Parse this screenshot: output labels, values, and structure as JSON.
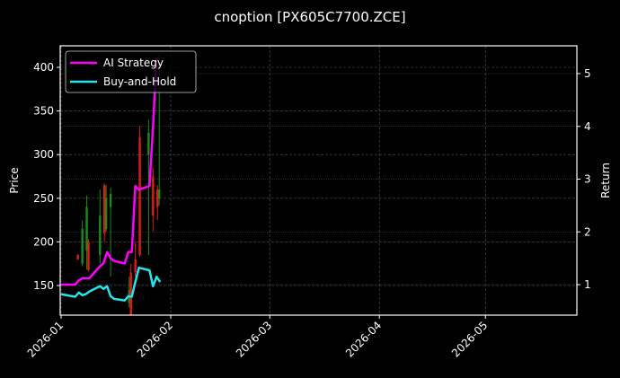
{
  "chart_data": {
    "type": "line",
    "title": "cnoption [PX605C7700.ZCE]",
    "xlabel": "",
    "ylabel_left": "Price",
    "ylabel_right": "Return",
    "background": "#000000",
    "grid": true,
    "legend_position": "upper left",
    "x_ticks": [
      "2026-01",
      "2026-02",
      "2026-03",
      "2026-04",
      "2026-05"
    ],
    "y_left_ticks": [
      150,
      200,
      250,
      300,
      350,
      400
    ],
    "y_right_ticks": [
      1,
      2,
      3,
      4,
      5
    ],
    "y_left_range": [
      115,
      425
    ],
    "y_right_range": [
      0.4,
      5.5
    ],
    "legend": [
      {
        "label": "AI Strategy",
        "color": "#ff00ff"
      },
      {
        "label": "Buy-and-Hold",
        "color": "#22e5ee"
      }
    ],
    "series": [
      {
        "name": "AI Strategy",
        "axis": "right",
        "color": "#ff00ff",
        "x": [
          "2026-01-01",
          "2026-01-05",
          "2026-01-06",
          "2026-01-07",
          "2026-01-08",
          "2026-01-09",
          "2026-01-12",
          "2026-01-13",
          "2026-01-14",
          "2026-01-15",
          "2026-01-16",
          "2026-01-19",
          "2026-01-20",
          "2026-01-21",
          "2026-01-22",
          "2026-01-23",
          "2026-01-26",
          "2026-01-27",
          "2026-01-28"
        ],
        "values": [
          1.0,
          1.0,
          1.08,
          1.12,
          1.12,
          1.12,
          1.35,
          1.4,
          1.62,
          1.5,
          1.45,
          1.4,
          1.62,
          1.62,
          2.87,
          2.8,
          2.87,
          4.0,
          5.3
        ]
      },
      {
        "name": "Buy-and-Hold",
        "axis": "right",
        "color": "#22e5ee",
        "x": [
          "2026-01-01",
          "2026-01-05",
          "2026-01-06",
          "2026-01-07",
          "2026-01-08",
          "2026-01-09",
          "2026-01-12",
          "2026-01-13",
          "2026-01-14",
          "2026-01-15",
          "2026-01-16",
          "2026-01-19",
          "2026-01-20",
          "2026-01-21",
          "2026-01-22",
          "2026-01-23",
          "2026-01-26",
          "2026-01-27",
          "2026-01-28",
          "2026-01-29"
        ],
        "values": [
          0.82,
          0.77,
          0.85,
          0.8,
          0.82,
          0.87,
          0.97,
          0.92,
          0.97,
          0.78,
          0.73,
          0.7,
          0.78,
          0.77,
          1.05,
          1.32,
          1.27,
          0.97,
          1.15,
          1.05
        ]
      }
    ],
    "candles": {
      "axis": "left",
      "up_color": "#1a8c1a",
      "down_color": "#e31a1a",
      "items": [
        {
          "x": "2026-01-06",
          "open": 185,
          "close": 180,
          "high": 186,
          "low": 179
        },
        {
          "x": "2026-01-07",
          "open": 175,
          "close": 215,
          "high": 225,
          "low": 172
        },
        {
          "x": "2026-01-08",
          "open": 190,
          "close": 240,
          "high": 253,
          "low": 168
        },
        {
          "x": "2026-01-09",
          "open": 200,
          "close": 168,
          "high": 203,
          "low": 166
        },
        {
          "x": "2026-01-12",
          "open": 185,
          "close": 230,
          "high": 260,
          "low": 175
        },
        {
          "x": "2026-01-13",
          "open": 265,
          "close": 210,
          "high": 267,
          "low": 200
        },
        {
          "x": "2026-01-14",
          "open": 215,
          "close": 250,
          "high": 265,
          "low": 212
        },
        {
          "x": "2026-01-15",
          "open": 240,
          "close": 255,
          "high": 262,
          "low": 160
        },
        {
          "x": "2026-01-20",
          "open": 130,
          "close": 145,
          "high": 160,
          "low": 125
        },
        {
          "x": "2026-01-21",
          "open": 165,
          "close": 115,
          "high": 175,
          "low": 113
        },
        {
          "x": "2026-01-22",
          "open": 180,
          "close": 165,
          "high": 200,
          "low": 160
        },
        {
          "x": "2026-01-23",
          "open": 320,
          "close": 185,
          "high": 333,
          "low": 183
        },
        {
          "x": "2026-01-26",
          "open": 300,
          "close": 325,
          "high": 340,
          "low": 185
        },
        {
          "x": "2026-01-27",
          "open": 275,
          "close": 230,
          "high": 285,
          "low": 212
        },
        {
          "x": "2026-01-28",
          "open": 260,
          "close": 240,
          "high": 265,
          "low": 225
        },
        {
          "x": "2026-01-29",
          "open": 250,
          "close": 260,
          "high": 415,
          "low": 242
        }
      ]
    }
  }
}
